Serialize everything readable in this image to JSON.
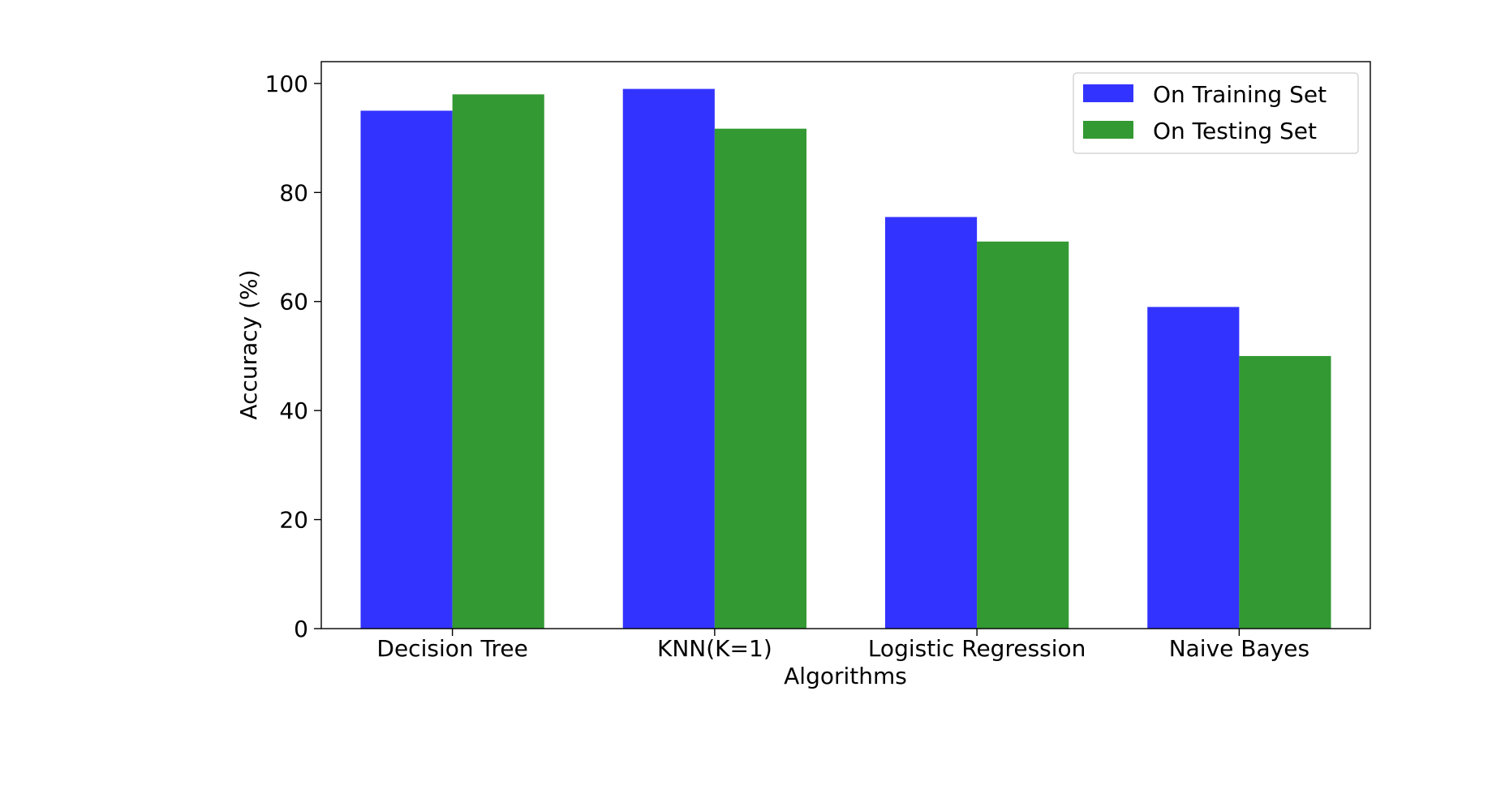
{
  "chart_data": {
    "type": "bar",
    "categories": [
      "Decision Tree",
      "KNN(K=1)",
      "Logistic Regression",
      "Naive Bayes"
    ],
    "series": [
      {
        "name": "On Training Set",
        "values": [
          95,
          99,
          75.5,
          59
        ],
        "color": "#3333ff"
      },
      {
        "name": "On Testing Set",
        "values": [
          98,
          91.7,
          71,
          50
        ],
        "color": "#339933"
      }
    ],
    "xlabel": "Algorithms",
    "ylabel": "Accuracy (%)",
    "ylim": [
      0,
      104
    ],
    "yticks": [
      0,
      20,
      40,
      60,
      80,
      100
    ],
    "grid": false,
    "legend_position": "upper right"
  }
}
